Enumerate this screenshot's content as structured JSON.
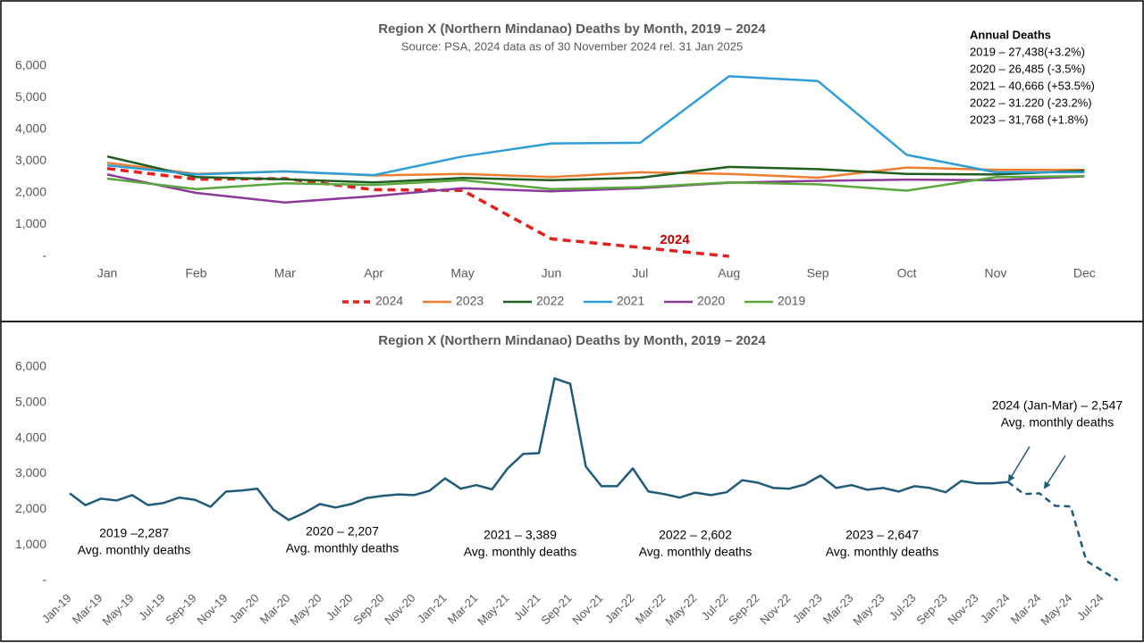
{
  "chart_data": [
    {
      "type": "line",
      "title": "Region X (Northern Mindanao) Deaths by Month, 2019 – 2024",
      "subtitle": "Source: PSA, 2024 data as of 30 November 2024 rel. 31 Jan 2025",
      "categories": [
        "Jan",
        "Feb",
        "Mar",
        "Apr",
        "May",
        "Jun",
        "Jul",
        "Aug",
        "Sep",
        "Oct",
        "Nov",
        "Dec"
      ],
      "series": [
        {
          "name": "2024",
          "color": "#e4201c",
          "dashed": true,
          "values": [
            2770,
            2430,
            2450,
            2100,
            2080,
            550,
            280,
            0,
            null,
            null,
            null,
            null
          ]
        },
        {
          "name": "2023",
          "color": "#ed7d31",
          "values": [
            2950,
            2600,
            2680,
            2550,
            2600,
            2500,
            2650,
            2600,
            2480,
            2800,
            2730,
            2730
          ]
        },
        {
          "name": "2022",
          "color": "#1e5e20",
          "values": [
            3150,
            2500,
            2430,
            2330,
            2470,
            2400,
            2480,
            2820,
            2750,
            2600,
            2580,
            2700
          ]
        },
        {
          "name": "2021",
          "color": "#2e9fd6",
          "values": [
            2870,
            2580,
            2680,
            2560,
            3150,
            3560,
            3580,
            5680,
            5530,
            3200,
            2650,
            2650
          ]
        },
        {
          "name": "2020",
          "color": "#8e3a9a",
          "values": [
            2580,
            2000,
            1700,
            1900,
            2150,
            2050,
            2150,
            2320,
            2380,
            2420,
            2400,
            2520
          ]
        },
        {
          "name": "2019",
          "color": "#5aa83c",
          "values": [
            2450,
            2120,
            2300,
            2250,
            2400,
            2120,
            2180,
            2330,
            2270,
            2070,
            2500,
            2530
          ]
        }
      ],
      "ylim": [
        0,
        6000
      ],
      "yticks": [
        {
          "value": 0,
          "label": "-"
        },
        {
          "value": 1000,
          "label": "1,000"
        },
        {
          "value": 2000,
          "label": "2,000"
        },
        {
          "value": 3000,
          "label": "3,000"
        },
        {
          "value": 4000,
          "label": "4,000"
        },
        {
          "value": 5000,
          "label": "5,000"
        },
        {
          "value": 6000,
          "label": "6,000"
        }
      ],
      "grid": false,
      "legend": "bottom",
      "annotations": [
        {
          "lines": [
            "2024"
          ],
          "color": "#c00000"
        }
      ],
      "annual_deaths": {
        "title": "Annual Deaths",
        "lines": [
          "2019 – 27,438(+3.2%)",
          "2020 – 26,485 (-3.5%)",
          "2021 – 40,666 (+53.5%)",
          "2022 – 31.220 (-23.2%)",
          "2023 – 31,768 (+1.8%)"
        ]
      }
    },
    {
      "type": "line",
      "title": "Region X (Northern Mindanao) Deaths by Month, 2019 – 2024",
      "categories": [
        "Jan-19",
        null,
        "Mar-19",
        null,
        "May-19",
        null,
        "Jul-19",
        null,
        "Sep-19",
        null,
        "Nov-19",
        null,
        "Jan-20",
        null,
        "Mar-20",
        null,
        "May-20",
        null,
        "Jul-20",
        null,
        "Sep-20",
        null,
        "Nov-20",
        null,
        "Jan-21",
        null,
        "Mar-21",
        null,
        "May-21",
        null,
        "Jul-21",
        null,
        "Sep-21",
        null,
        "Nov-21",
        null,
        "Jan-22",
        null,
        "Mar-22",
        null,
        "May-22",
        null,
        "Jul-22",
        null,
        "Sep-22",
        null,
        "Nov-22",
        null,
        "Jan-23",
        null,
        "Mar-23",
        null,
        "May-23",
        null,
        "Jul-23",
        null,
        "Sep-23",
        null,
        "Nov-23",
        null,
        "Jan-24",
        null,
        "Mar-24",
        null,
        "May-24",
        null,
        "Jul-24",
        null
      ],
      "series": [
        {
          "color": "#1f5b7a",
          "values": [
            2450,
            2120,
            2300,
            2250,
            2400,
            2120,
            2180,
            2330,
            2270,
            2070,
            2500,
            2530,
            2580,
            2000,
            1700,
            1900,
            2150,
            2050,
            2150,
            2320,
            2380,
            2420,
            2400,
            2520,
            2870,
            2580,
            2680,
            2560,
            3150,
            3560,
            3580,
            5680,
            5530,
            3200,
            2650,
            2650,
            3150,
            2500,
            2430,
            2330,
            2470,
            2400,
            2480,
            2820,
            2750,
            2600,
            2580,
            2700,
            2950,
            2600,
            2680,
            2550,
            2600,
            2500,
            2650,
            2600,
            2480,
            2800,
            2730,
            2730,
            2770,
            null,
            null,
            null,
            null,
            null,
            null,
            null
          ]
        },
        {
          "color": "#1f5b7a",
          "dashed": true,
          "values": [
            null,
            null,
            null,
            null,
            null,
            null,
            null,
            null,
            null,
            null,
            null,
            null,
            null,
            null,
            null,
            null,
            null,
            null,
            null,
            null,
            null,
            null,
            null,
            null,
            null,
            null,
            null,
            null,
            null,
            null,
            null,
            null,
            null,
            null,
            null,
            null,
            null,
            null,
            null,
            null,
            null,
            null,
            null,
            null,
            null,
            null,
            null,
            null,
            null,
            null,
            null,
            null,
            null,
            null,
            null,
            null,
            null,
            null,
            null,
            null,
            2770,
            2430,
            2450,
            2100,
            2080,
            550,
            280,
            0
          ]
        }
      ],
      "ylim": [
        0,
        6000
      ],
      "yticks": [
        {
          "value": 0,
          "label": "-"
        },
        {
          "value": 1000,
          "label": "1,000"
        },
        {
          "value": 2000,
          "label": "2,000"
        },
        {
          "value": 3000,
          "label": "3,000"
        },
        {
          "value": 4000,
          "label": "4,000"
        },
        {
          "value": 5000,
          "label": "5,000"
        },
        {
          "value": 6000,
          "label": "6,000"
        }
      ],
      "grid": false,
      "annotations": [
        {
          "lines": [
            "2019 –2,287",
            "Avg. monthly deaths"
          ]
        },
        {
          "lines": [
            "2020 –  2,207",
            "Avg. monthly deaths"
          ]
        },
        {
          "lines": [
            "2021 – 3,389",
            "Avg. monthly deaths"
          ]
        },
        {
          "lines": [
            "2022 – 2,602",
            "Avg. monthly deaths"
          ]
        },
        {
          "lines": [
            "2023 – 2,647",
            "Avg. monthly deaths"
          ]
        },
        {
          "lines": [
            "2024 (Jan-Mar) – 2,547",
            "Avg. monthly deaths"
          ]
        }
      ]
    }
  ]
}
